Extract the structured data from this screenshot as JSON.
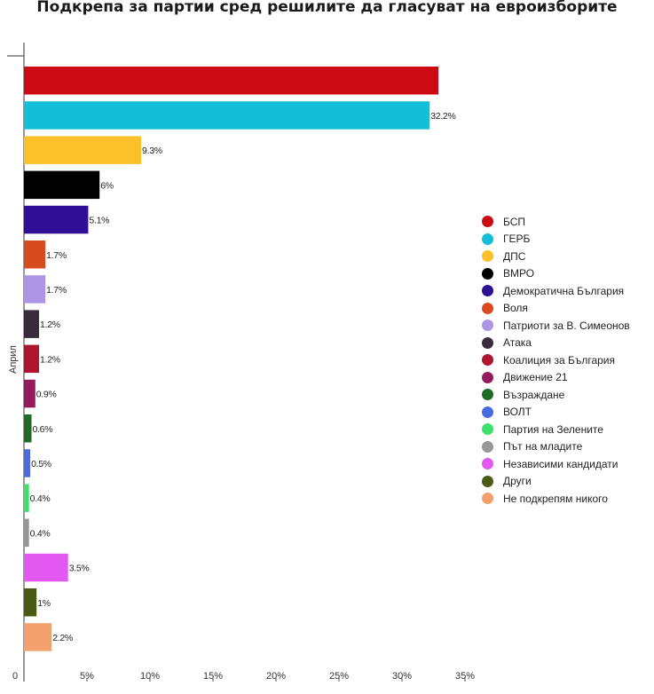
{
  "chart_data": {
    "type": "bar",
    "orientation": "horizontal",
    "title": "Подкрепа за партии сред решилите да гласуват на евроизборите",
    "ylabel": "Април",
    "xlim": [
      0,
      37
    ],
    "xticks": [
      5,
      10,
      15,
      20,
      25,
      30,
      35
    ],
    "xtick_suffix": "%",
    "zero_label": "0",
    "grid": false,
    "legend_position": "right",
    "categories": [
      "БСП",
      "ГЕРБ",
      "ДПС",
      "ВМРО",
      "Демократична България",
      "Воля",
      "Патриоти за В. Симеонов",
      "Атака",
      "Коалиция за България",
      "Движение 21",
      "Възраждане",
      "ВОЛТ",
      "Партия на Зелените",
      "Път на младите",
      "Независими кандидати",
      "Други",
      "Не подкрепям никого"
    ],
    "values": [
      32.9,
      32.2,
      9.3,
      6,
      5.1,
      1.7,
      1.7,
      1.2,
      1.2,
      0.9,
      0.6,
      0.5,
      0.4,
      0.4,
      3.5,
      1,
      2.2
    ],
    "labels": [
      "",
      "32.2%",
      "9.3%",
      "6%",
      "5.1%",
      "1.7%",
      "1.7%",
      "1.2%",
      "1.2%",
      "0.9%",
      "0.6%",
      "0.5%",
      "0.4%",
      "0.4%",
      "3.5%",
      "1%",
      "2.2%"
    ],
    "colors": [
      "#cc0a14",
      "#13bfd8",
      "#fbc02a",
      "#000000",
      "#2e0f96",
      "#d84b1e",
      "#ad95e6",
      "#3a2b3c",
      "#b01530",
      "#951a5e",
      "#1f6b28",
      "#4a6ce2",
      "#3de06c",
      "#979797",
      "#e358f1",
      "#4a5a12",
      "#f2a06c"
    ]
  }
}
